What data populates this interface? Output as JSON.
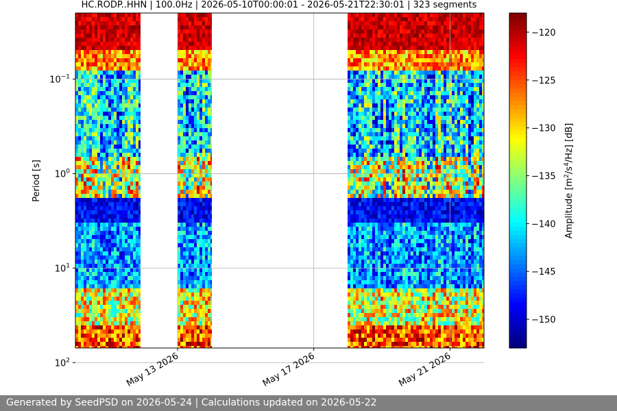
{
  "chart_data": {
    "type": "heatmap",
    "title": "HC.RODP..HHN | 100.0Hz | 2026-05-10T00:00:01 - 2026-05-21T22:30:01 | 323 segments",
    "xlabel": "",
    "ylabel": "Period [s]",
    "x_axis": {
      "type": "date",
      "range": [
        "2026-05-10",
        "2026-05-22"
      ],
      "ticks": [
        "2026-05-13",
        "2026-05-17",
        "2026-05-21"
      ],
      "tick_labels": [
        "May 13 2026",
        "May 17 2026",
        "May 21 2026"
      ]
    },
    "y_axis": {
      "scale": "log",
      "inverted": true,
      "range": [
        0.02,
        70
      ],
      "ticks": [
        0.1,
        1,
        10,
        100
      ],
      "tick_labels": [
        "10−1",
        "10^0",
        "10^1",
        "10^2"
      ]
    },
    "data_segments": [
      {
        "start": "2026-05-10",
        "end": "2026-05-11 22:00"
      },
      {
        "start": "2026-05-13",
        "end": "2026-05-14"
      },
      {
        "start": "2026-05-18",
        "end": "2026-05-22"
      }
    ],
    "grid": true,
    "colorbar": {
      "label": "Amplitude [m^2/s^4/Hz] [dB]",
      "colormap": "jet",
      "range": [
        -153,
        -118
      ],
      "ticks": [
        -120,
        -125,
        -130,
        -135,
        -140,
        -145,
        -150
      ]
    }
  },
  "footer": {
    "text": "Generated by SeedPSD on 2026-05-24 | Calculations updated on 2026-05-22"
  }
}
